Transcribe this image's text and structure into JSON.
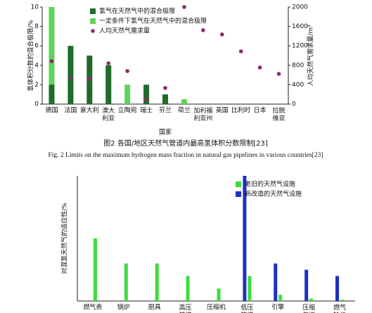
{
  "chart_data": [
    {
      "type": "bar",
      "title": "图2  各国/地区天然气管道内最高氢体积分数限制[23]",
      "subtitle": "Fig. 2   Limits on the maximum hydrogen mass fraction in natural gas pipelines in various countries[23]",
      "x_label": "国家",
      "y_label": "氢体积分数的混合极限/%",
      "y2_label": "人均天然气需求量/m³",
      "categories": [
        "德国",
        "法国",
        "意大利",
        "澳大利亚",
        "立陶宛",
        "瑞士",
        "芬兰",
        "荷兰",
        "加利福利亚州",
        "英国",
        "比利时",
        "日本",
        "拉脱维亚"
      ],
      "series": [
        {
          "name": "氢气在天然气中的混合极限",
          "color": "#1f6b2a",
          "values": [
            2,
            6,
            5,
            4,
            null,
            2,
            1,
            null,
            null,
            null,
            null,
            null,
            null
          ]
        },
        {
          "name": "一定条件下氢气在天然气中的混合极限",
          "color": "#5fd35a",
          "values": [
            10,
            null,
            null,
            null,
            2,
            null,
            null,
            0.5,
            null,
            null,
            null,
            null,
            null
          ]
        },
        {
          "name": "人均天然气需求量",
          "color": "#8b2a6b",
          "axis": "y2",
          "kind": "scatter",
          "values": [
            884,
            522,
            522,
            840,
            681,
            100,
            333,
            2000,
            1522,
            1435,
            1087,
            754,
            623
          ]
        }
      ],
      "ylim": [
        0,
        10
      ],
      "yticks": [
        0,
        2,
        4,
        6,
        8,
        10
      ],
      "y2lim": [
        0,
        2000
      ],
      "y2ticks": [
        0,
        400,
        800,
        1200,
        1600,
        2000
      ],
      "legend": "top-left",
      "grid": false
    },
    {
      "type": "bar",
      "y_label": "对混氢天然气的适应性/%",
      "categories": [
        "燃气表",
        "锅炉",
        "厨具",
        "高压管道",
        "压缩机",
        "低压管道",
        "引擎",
        "压缩气瓶",
        "燃气轮机"
      ],
      "series": [
        {
          "name": "老旧的天然气设施",
          "color": "#3ddc3d",
          "values": [
            50,
            30,
            30,
            20,
            10,
            20,
            5,
            2,
            1
          ]
        },
        {
          "name": "新改造的天然气设施",
          "color": "#1f2fbf",
          "values": [
            null,
            null,
            null,
            null,
            null,
            100,
            30,
            25,
            20
          ]
        }
      ],
      "ylim": [
        0,
        100
      ],
      "legend": "top-right",
      "grid": false
    }
  ]
}
